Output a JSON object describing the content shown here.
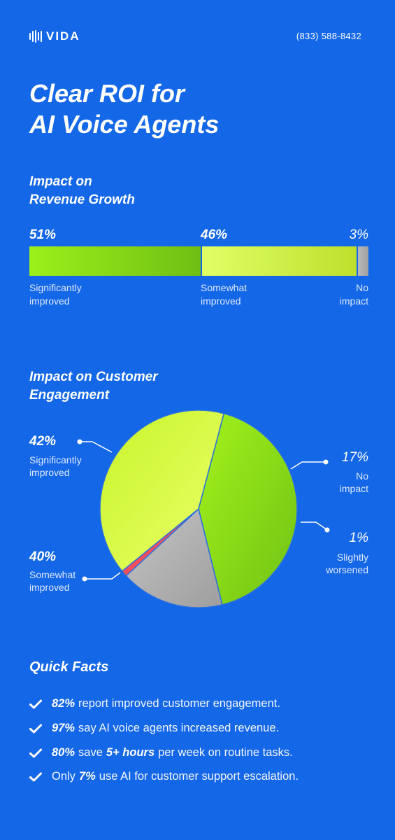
{
  "header": {
    "logo_text": "VIDA",
    "phone": "(833) 588-8432"
  },
  "headline": {
    "line1": "Clear ROI for",
    "line2": "AI Voice Agents"
  },
  "revenue": {
    "title_line1": "Impact on",
    "title_line2": "Revenue Growth",
    "segments": [
      {
        "pct_label": "51%",
        "value": 51,
        "label_line1": "Significantly",
        "label_line2": "improved",
        "color_from": "#9cf01a",
        "color_to": "#6fbf14"
      },
      {
        "pct_label": "46%",
        "value": 46,
        "label_line1": "Somewhat",
        "label_line2": "improved",
        "color_from": "#e0ff66",
        "color_to": "#bde02c"
      },
      {
        "pct_label": "3%",
        "value": 3,
        "label_line1": "No",
        "label_line2": "impact",
        "color_from": "#b8b8b8",
        "color_to": "#a0a0a0"
      }
    ]
  },
  "engagement": {
    "title_line1": "Impact on Customer",
    "title_line2": "Engagement",
    "slices": [
      {
        "pct_label": "42%",
        "value": 42,
        "label_line1": "Significantly",
        "label_line2": "improved",
        "color_from": "#a3f21c",
        "color_to": "#70c214"
      },
      {
        "pct_label": "17%",
        "value": 17,
        "label_line1": "No",
        "label_line2": "impact",
        "color_from": "#c4c4c4",
        "color_to": "#9e9e9e"
      },
      {
        "pct_label": "1%",
        "value": 1,
        "label_line1": "Slightly",
        "label_line2": "worsened",
        "color_from": "#ff5c6a",
        "color_to": "#e8404e"
      },
      {
        "pct_label": "40%",
        "value": 40,
        "label_line1": "Somewhat",
        "label_line2": "improved",
        "color_from": "#c7f52a",
        "color_to": "#ecff6a"
      }
    ]
  },
  "chart_data": [
    {
      "type": "bar",
      "title": "Impact on Revenue Growth",
      "categories": [
        "Significantly improved",
        "Somewhat improved",
        "No impact"
      ],
      "values": [
        51,
        46,
        3
      ]
    },
    {
      "type": "pie",
      "title": "Impact on Customer Engagement",
      "categories": [
        "Significantly improved",
        "No impact",
        "Slightly worsened",
        "Somewhat improved"
      ],
      "values": [
        42,
        17,
        1,
        40
      ]
    }
  ],
  "facts": {
    "title": "Quick Facts",
    "items": [
      {
        "bold": "82%",
        "text": "report improved customer engagement.",
        "bold2": "",
        "text2": ""
      },
      {
        "bold": "97%",
        "text": "say AI voice agents increased revenue.",
        "bold2": "",
        "text2": ""
      },
      {
        "bold": "80%",
        "text": "save",
        "bold2": "5+ hours",
        "text2": "per week on routine tasks."
      },
      {
        "pre": "Only",
        "bold": "7%",
        "text": "use AI for customer support escalation.",
        "bold2": "",
        "text2": ""
      }
    ]
  },
  "colors": {
    "background": "#1467e6",
    "divider": "#2a6fe0"
  }
}
